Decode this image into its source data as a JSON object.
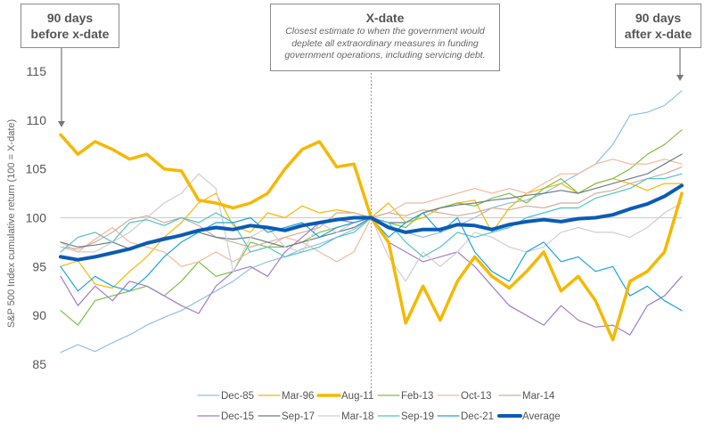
{
  "callouts": {
    "left": {
      "title_l1": "90 days",
      "title_l2": "before x-date"
    },
    "middle": {
      "title": "X-date",
      "desc_l1": "Closest estimate to when the government would",
      "desc_l2": "deplete all extraordinary measures in funding",
      "desc_l3": "government operations, including servicing debt."
    },
    "right": {
      "title_l1": "90 days",
      "title_l2": "after x-date"
    }
  },
  "chart_data": {
    "type": "line",
    "title": "",
    "xlabel": "",
    "ylabel": "S&P 500 Index cumulative return (100 = X-date)",
    "x_unit": "days relative to x-date",
    "x": [
      -90,
      -85,
      -80,
      -75,
      -70,
      -65,
      -60,
      -55,
      -50,
      -45,
      -40,
      -35,
      -30,
      -25,
      -20,
      -15,
      -10,
      -5,
      0,
      5,
      10,
      15,
      20,
      25,
      30,
      35,
      40,
      45,
      50,
      55,
      60,
      65,
      70,
      75,
      80,
      85,
      90
    ],
    "xlim": [
      -90,
      90
    ],
    "ylim": [
      85,
      115
    ],
    "yticks": [
      85,
      90,
      95,
      100,
      105,
      110,
      115
    ],
    "reference_line": 100,
    "xdate_marker": 0,
    "legend_position": "bottom",
    "series": [
      {
        "name": "Dec-85",
        "color": "#8fc1e6",
        "width": 1.2,
        "values": [
          86.2,
          87.0,
          86.3,
          87.2,
          88.0,
          89.0,
          89.8,
          90.5,
          91.5,
          92.5,
          93.5,
          94.8,
          95.5,
          96.0,
          96.8,
          97.3,
          98.0,
          98.8,
          100.0,
          99.2,
          98.5,
          98.0,
          98.5,
          99.2,
          100.0,
          101.0,
          101.5,
          101.8,
          102.5,
          103.5,
          104.5,
          105.5,
          107.5,
          110.5,
          110.8,
          111.5,
          113.0
        ]
      },
      {
        "name": "Mar-96",
        "color": "#f5b800",
        "width": 1.2,
        "values": [
          95.0,
          95.6,
          93.2,
          92.8,
          94.5,
          96.0,
          98.0,
          99.5,
          101.5,
          102.5,
          99.2,
          98.5,
          100.5,
          100.0,
          101.2,
          100.5,
          100.8,
          100.5,
          100.0,
          101.5,
          99.5,
          100.0,
          101.0,
          101.5,
          101.8,
          98.5,
          101.0,
          102.5,
          103.0,
          103.5,
          102.5,
          103.5,
          104.0,
          103.5,
          102.8,
          103.5,
          103.5
        ]
      },
      {
        "name": "Aug-11",
        "color": "#f5b800",
        "width": 3.5,
        "values": [
          108.5,
          106.5,
          107.8,
          107.0,
          106.0,
          106.5,
          105.0,
          104.8,
          101.8,
          101.5,
          101.0,
          101.5,
          102.5,
          105.0,
          107.0,
          107.8,
          105.2,
          105.5,
          100.0,
          97.5,
          89.2,
          93.0,
          89.5,
          93.5,
          96.0,
          94.0,
          92.8,
          94.5,
          96.5,
          92.5,
          94.0,
          91.5,
          87.5,
          93.5,
          94.5,
          96.5,
          102.5
        ]
      },
      {
        "name": "Feb-13",
        "color": "#7ac143",
        "width": 1.2,
        "values": [
          90.5,
          89.0,
          91.5,
          92.0,
          92.5,
          93.0,
          92.0,
          93.5,
          95.5,
          94.0,
          94.5,
          97.5,
          97.0,
          97.0,
          97.5,
          98.5,
          99.0,
          99.5,
          100.0,
          99.5,
          99.0,
          100.5,
          101.0,
          101.5,
          101.2,
          102.0,
          102.5,
          101.5,
          103.0,
          104.0,
          102.5,
          103.5,
          104.0,
          105.0,
          106.5,
          107.5,
          109.0
        ]
      },
      {
        "name": "Oct-13",
        "color": "#f4b89a",
        "width": 1.2,
        "values": [
          97.5,
          96.5,
          97.8,
          99.0,
          97.5,
          97.0,
          96.5,
          95.0,
          95.5,
          96.5,
          95.5,
          96.5,
          97.0,
          98.0,
          97.5,
          96.5,
          95.5,
          96.5,
          100.0,
          100.5,
          101.5,
          101.5,
          102.0,
          102.5,
          103.0,
          102.5,
          103.0,
          102.5,
          103.5,
          104.5,
          104.5,
          105.5,
          106.0,
          105.5,
          105.5,
          106.0,
          105.5
        ]
      },
      {
        "name": "Mar-14",
        "color": "#d4ae9a",
        "width": 1.2,
        "values": [
          97.0,
          96.8,
          97.5,
          98.5,
          99.8,
          100.2,
          99.5,
          100.0,
          99.2,
          98.0,
          97.5,
          97.0,
          97.5,
          98.0,
          98.5,
          99.0,
          100.5,
          100.5,
          100.0,
          100.5,
          100.2,
          100.8,
          100.5,
          100.2,
          100.5,
          101.0,
          100.8,
          101.2,
          101.0,
          101.5,
          101.5,
          102.5,
          102.8,
          103.5,
          104.0,
          104.5,
          105.2
        ]
      },
      {
        "name": "Dec-15",
        "color": "#a57cc9",
        "width": 1.2,
        "values": [
          94.0,
          91.0,
          93.0,
          91.5,
          93.5,
          93.0,
          92.0,
          91.0,
          90.2,
          93.0,
          94.5,
          95.0,
          94.0,
          96.5,
          98.0,
          99.5,
          99.8,
          99.5,
          100.0,
          97.5,
          96.5,
          95.5,
          96.0,
          96.5,
          95.0,
          93.0,
          91.0,
          90.0,
          89.0,
          91.0,
          89.5,
          88.8,
          89.0,
          88.0,
          91.0,
          92.0,
          94.0
        ]
      },
      {
        "name": "Sep-17",
        "color": "#6b7b8c",
        "width": 1.2,
        "values": [
          97.5,
          97.0,
          97.2,
          97.5,
          96.8,
          97.5,
          98.0,
          98.2,
          98.5,
          98.0,
          97.8,
          98.0,
          97.5,
          97.0,
          97.5,
          98.0,
          98.5,
          99.0,
          100.0,
          99.5,
          99.5,
          100.5,
          101.0,
          101.3,
          101.5,
          101.8,
          102.0,
          102.3,
          102.5,
          102.8,
          102.5,
          103.0,
          103.5,
          104.0,
          104.5,
          105.5,
          106.5
        ]
      },
      {
        "name": "Mar-18",
        "color": "#cfcfcf",
        "width": 1.2,
        "values": [
          97.0,
          96.5,
          96.5,
          97.5,
          98.5,
          100.0,
          101.5,
          102.5,
          104.5,
          103.0,
          94.5,
          98.0,
          99.0,
          97.0,
          96.5,
          99.5,
          98.5,
          99.5,
          100.0,
          96.0,
          93.5,
          96.5,
          95.0,
          96.5,
          98.5,
          98.0,
          97.0,
          96.5,
          97.0,
          98.5,
          99.0,
          98.5,
          98.5,
          98.0,
          99.0,
          100.5,
          101.5
        ]
      },
      {
        "name": "Sep-19",
        "color": "#4fc3c7",
        "width": 1.2,
        "values": [
          96.5,
          98.0,
          98.5,
          97.5,
          99.5,
          99.8,
          99.2,
          100.0,
          99.5,
          100.5,
          99.5,
          96.5,
          97.0,
          96.0,
          96.5,
          97.0,
          98.0,
          98.5,
          100.0,
          99.5,
          97.5,
          96.0,
          97.0,
          98.5,
          98.0,
          98.5,
          99.0,
          100.0,
          100.5,
          101.0,
          101.0,
          102.0,
          102.5,
          103.0,
          104.0,
          104.0,
          104.5
        ]
      },
      {
        "name": "Dec-21",
        "color": "#1ba3e0",
        "width": 1.2,
        "values": [
          95.0,
          92.5,
          94.0,
          93.0,
          92.5,
          94.0,
          96.0,
          97.5,
          98.5,
          99.5,
          99.5,
          100.0,
          98.5,
          99.0,
          99.5,
          98.0,
          99.0,
          99.5,
          100.0,
          98.0,
          99.5,
          100.5,
          98.5,
          100.0,
          96.5,
          94.5,
          93.5,
          96.5,
          97.5,
          95.5,
          96.0,
          94.5,
          95.0,
          92.0,
          93.0,
          91.5,
          90.5
        ]
      },
      {
        "name": "Average",
        "color": "#0a5bb5",
        "width": 4.0,
        "values": [
          96.0,
          95.7,
          96.0,
          96.4,
          96.8,
          97.4,
          97.8,
          98.2,
          98.7,
          99.0,
          98.8,
          99.2,
          99.0,
          98.7,
          99.2,
          99.5,
          99.8,
          100.0,
          100.0,
          99.0,
          98.5,
          98.8,
          98.8,
          99.3,
          99.2,
          98.8,
          99.3,
          99.6,
          99.8,
          99.6,
          99.9,
          100.0,
          100.3,
          100.9,
          101.4,
          102.2,
          103.3
        ]
      }
    ]
  }
}
